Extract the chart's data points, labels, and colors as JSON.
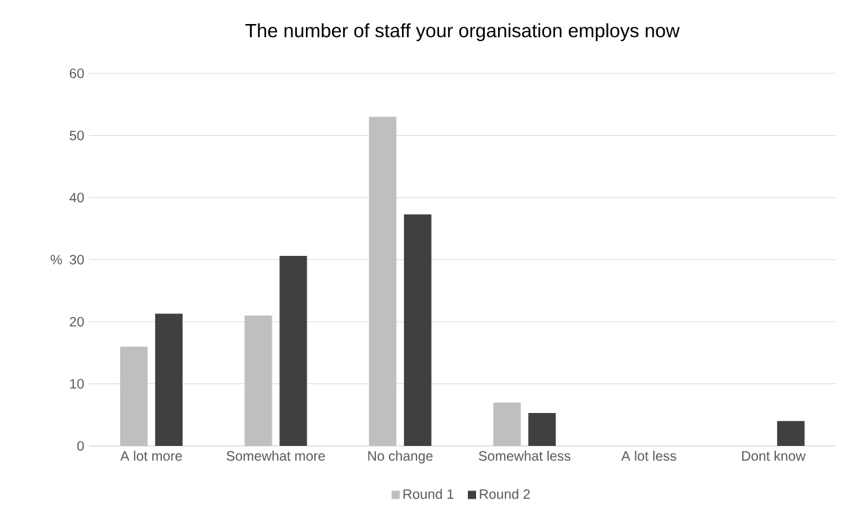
{
  "chart_data": {
    "type": "bar",
    "title": "The number of staff your organisation employs now",
    "ylabel": "%",
    "categories": [
      "A lot more",
      "Somewhat more",
      "No change",
      "Somewhat less",
      "A lot less",
      "Dont know"
    ],
    "series": [
      {
        "name": "Round 1",
        "color": "#bfbfbf",
        "values": [
          16,
          21,
          53,
          7,
          0,
          0
        ]
      },
      {
        "name": "Round 2",
        "color": "#404040",
        "values": [
          21.3,
          30.6,
          37.3,
          5.3,
          0,
          4
        ]
      }
    ],
    "ylim": [
      0,
      60
    ],
    "yticks": [
      0,
      10,
      20,
      30,
      40,
      50,
      60
    ],
    "grid": "y",
    "legend": "bottom"
  }
}
